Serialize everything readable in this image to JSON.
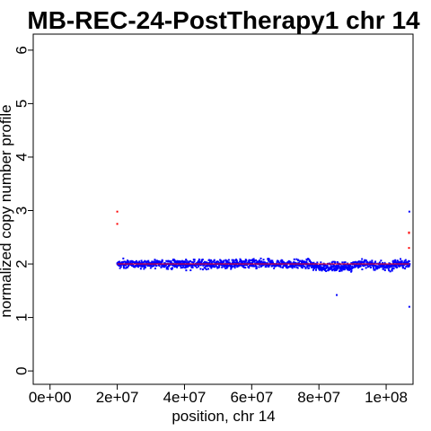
{
  "chart_data": {
    "type": "scatter",
    "title": "MB-REC-24-PostTherapy1 chr 14",
    "xlabel": "position, chr 14",
    "ylabel": "normalized copy number profile",
    "xlim": [
      -5000000,
      108000000
    ],
    "ylim": [
      -0.25,
      6.3
    ],
    "x_ticks": [
      0,
      20000000,
      40000000,
      60000000,
      80000000,
      100000000
    ],
    "x_tick_labels": [
      "0e+00",
      "2e+07",
      "4e+07",
      "6e+07",
      "8e+07",
      "1e+08"
    ],
    "y_ticks": [
      0,
      1,
      2,
      3,
      4,
      5,
      6
    ],
    "y_tick_labels": [
      "0",
      "1",
      "2",
      "3",
      "4",
      "5",
      "6"
    ],
    "grid": false,
    "series": [
      {
        "color": "#0000ff",
        "marker": "point",
        "x_range": [
          20000000,
          107000000
        ],
        "level": 2.0,
        "spread": 0.08
      },
      {
        "color": "#ff0000",
        "marker": "point",
        "points": [
          [
            20000000,
            2.98
          ],
          [
            20000000,
            2.75
          ],
          [
            106800000,
            2.59
          ],
          [
            106800000,
            2.58
          ],
          [
            106800000,
            2.3
          ]
        ]
      },
      {
        "color": "#0000ff",
        "marker": "point",
        "points": [
          [
            85300000,
            1.42
          ],
          [
            106900000,
            1.2
          ],
          [
            106900000,
            2.98
          ]
        ]
      }
    ],
    "segments": [
      {
        "x": [
          20000000,
          107000000
        ],
        "y": 2.0,
        "color": "#ff0000"
      }
    ],
    "colors": {
      "points": "#0000ff",
      "segment": "#ff0000",
      "axis": "#000000"
    }
  }
}
